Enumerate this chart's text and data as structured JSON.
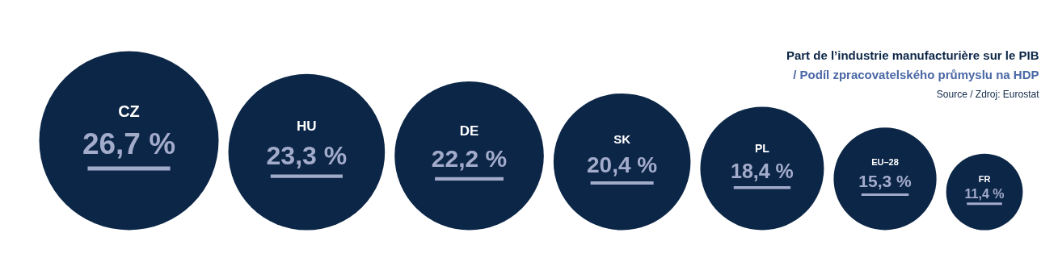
{
  "chart_data": {
    "type": "other",
    "title": "Part de l’industrie manufacturière sur le PIB",
    "subtitle": "/ Podíl zpracovatelského průmyslu na HDP",
    "annotations": [
      "Source / Zdroj: Eurostat"
    ],
    "categories": [
      "CZ",
      "HU",
      "DE",
      "SK",
      "PL",
      "EU–28",
      "FR"
    ],
    "values": [
      26.7,
      23.3,
      22.2,
      20.4,
      18.4,
      15.3,
      11.4
    ],
    "value_labels": [
      "26,7 %",
      "23,3 %",
      "22,2 %",
      "20,4 %",
      "18,4 %",
      "15,3 %",
      "11,4 %"
    ],
    "color": "#0c2647"
  }
}
